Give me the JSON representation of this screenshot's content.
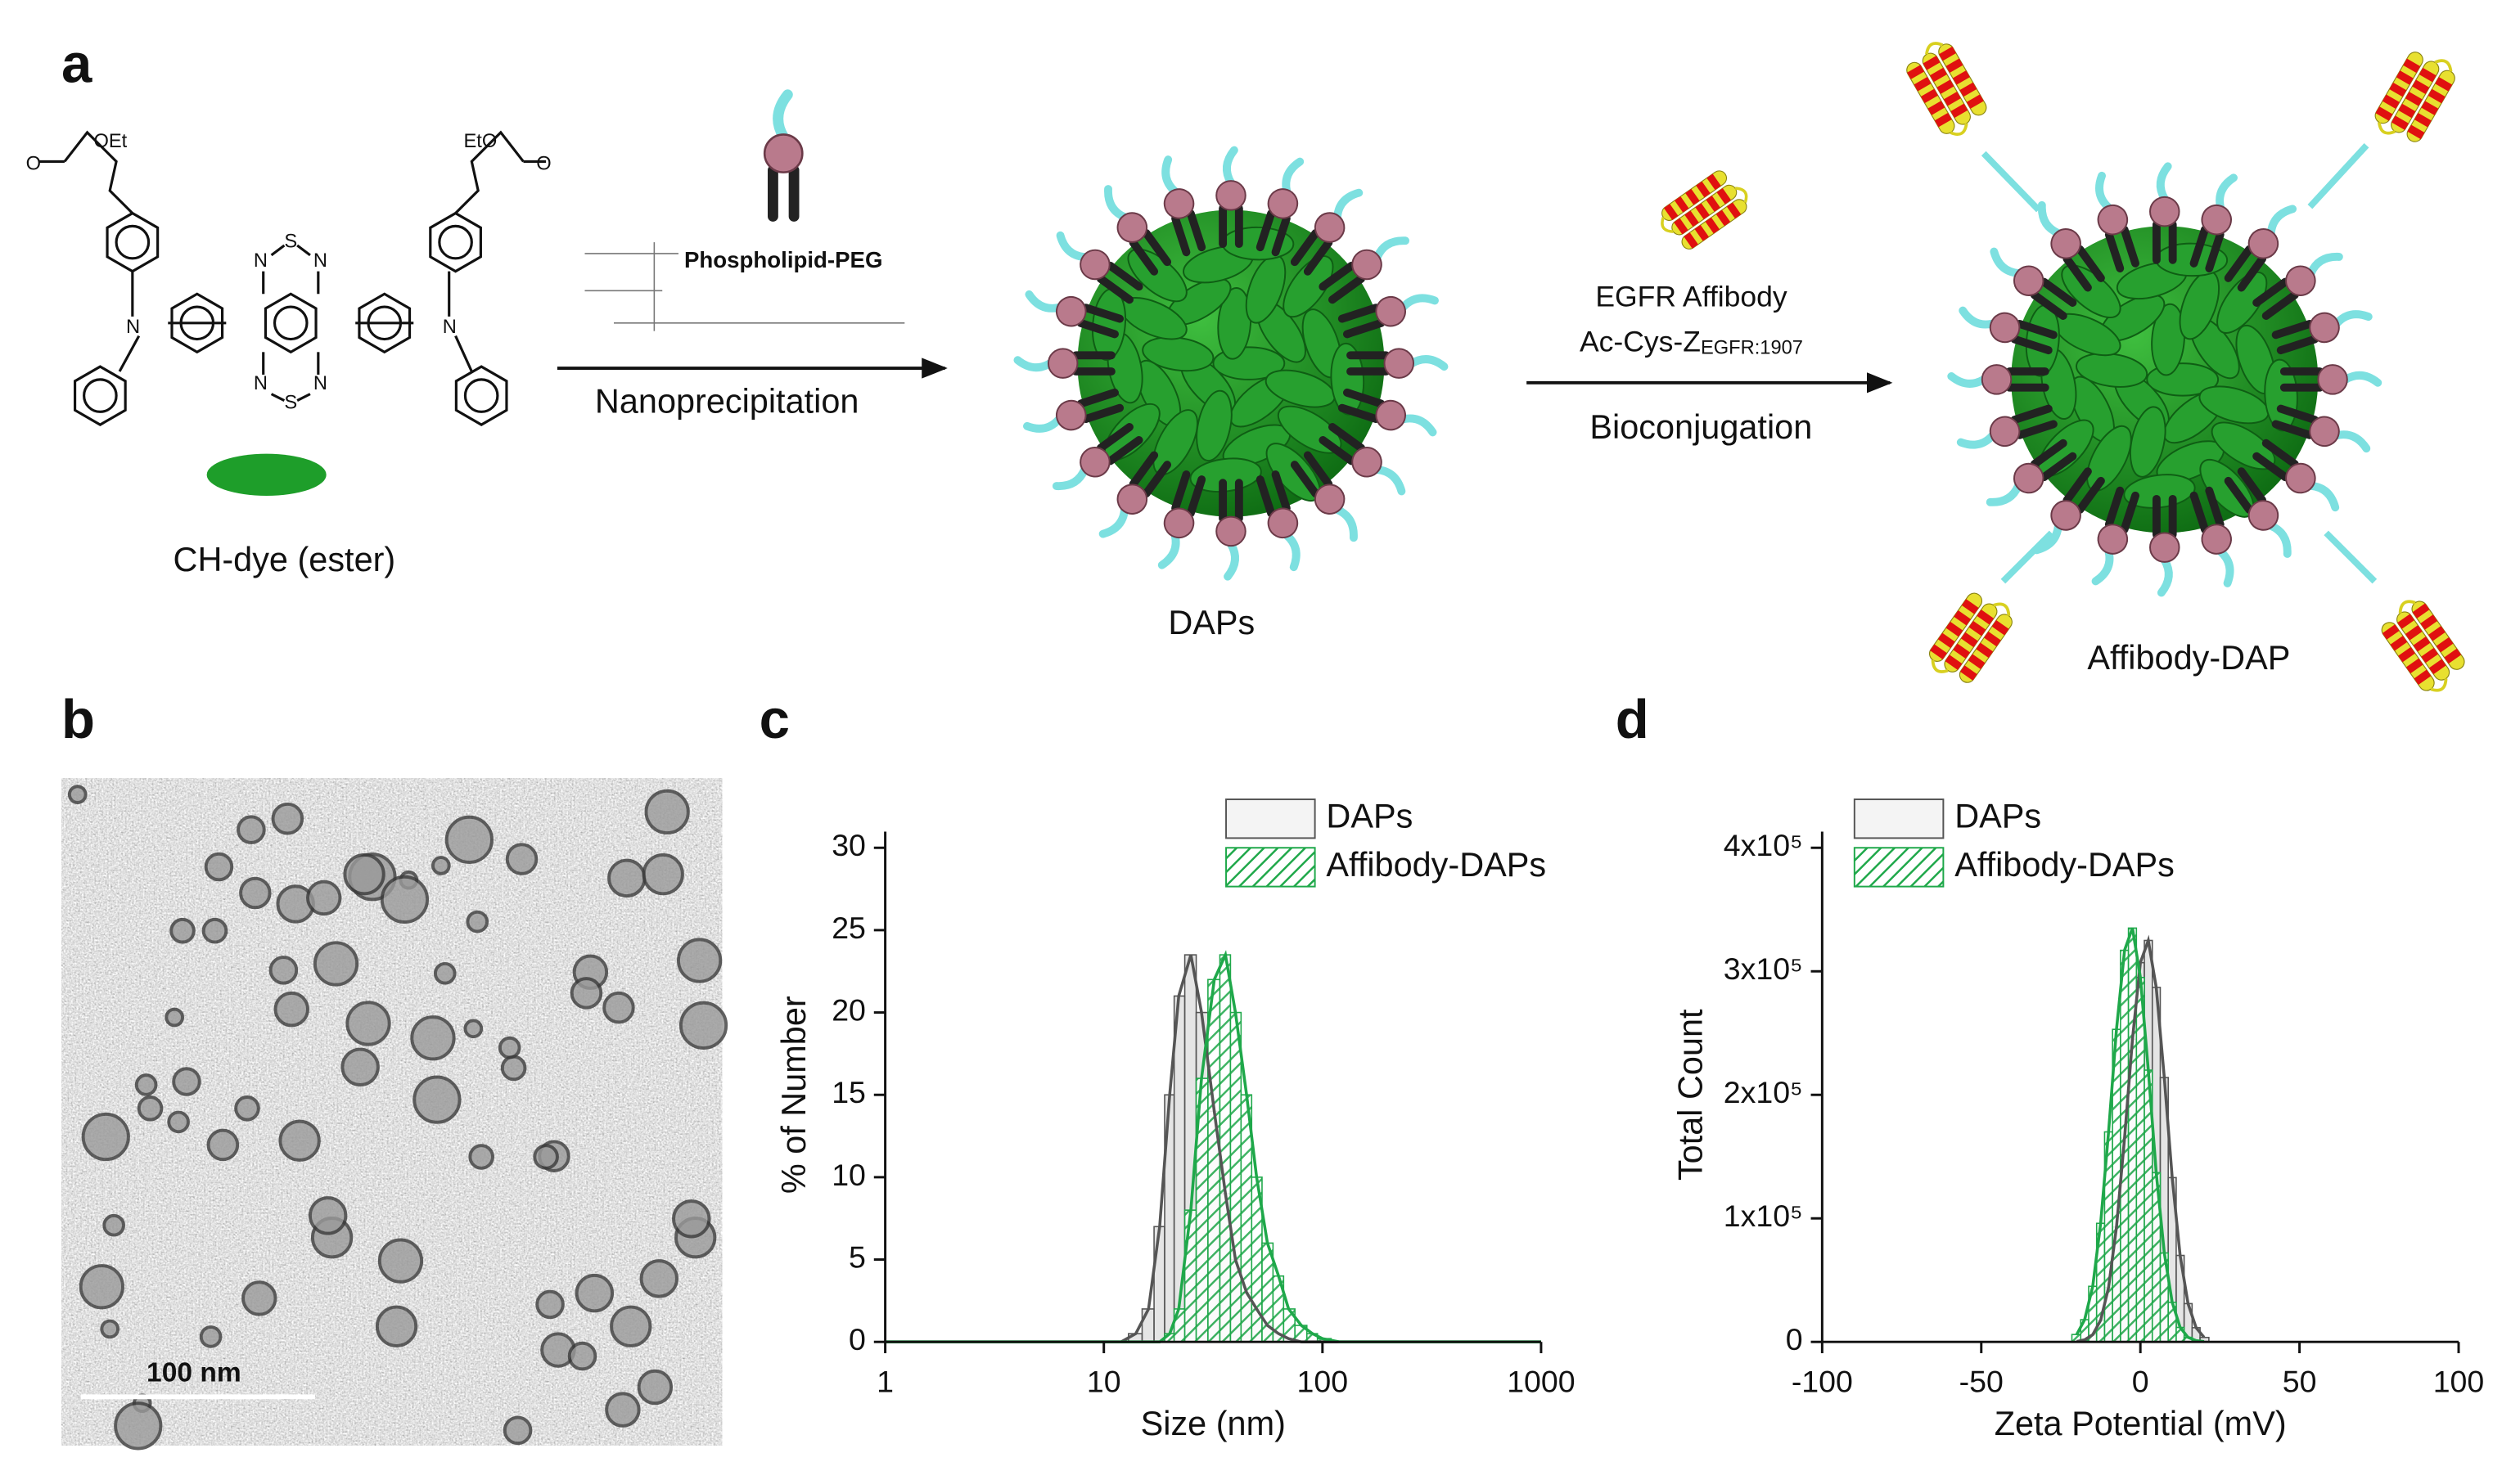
{
  "panel_labels": [
    "a",
    "b",
    "c",
    "d"
  ],
  "scheme": {
    "ester_left": "OEt",
    "ester_right": "EtO",
    "carbonyl_o": "O",
    "amine_n": "N",
    "thiadiazole_n": "N",
    "thiadiazole_s": "S",
    "dye_name": "CH-dye (ester)",
    "lipid_name": "Phospholipid-PEG",
    "step1": "Nanoprecipitation",
    "product1": "DAPs",
    "affibody_name": "EGFR Affibody",
    "affibody_code": "Ac-Cys-Z",
    "affibody_code_sub": "EGFR:1907",
    "step2": "Bioconjugation",
    "product2": "Affibody-DAP"
  },
  "tem": {
    "scale_bar": "100 nm"
  },
  "chart_data": [
    {
      "type": "bar",
      "x_label": "Size (nm)",
      "y_label": "% of Number",
      "log_x": true,
      "xlim": [
        1,
        1000
      ],
      "xticks": [
        1,
        10,
        100,
        1000
      ],
      "ylim": [
        0,
        30
      ],
      "yticks": [
        0,
        5,
        10,
        15,
        20,
        25,
        30
      ],
      "legend": "upper right",
      "x": [
        1,
        12,
        14,
        16,
        18,
        20,
        22,
        25,
        28,
        32,
        36,
        40,
        45,
        50,
        56,
        63,
        70,
        80,
        90,
        100,
        120,
        1000
      ],
      "series": [
        {
          "name": "DAPs",
          "color": "#555555",
          "hatch": false,
          "values": [
            0,
            0,
            0.5,
            2,
            7,
            15,
            21,
            23.5,
            20,
            14,
            9,
            5,
            3,
            2,
            1,
            0.5,
            0.2,
            0,
            0,
            0,
            0,
            0
          ]
        },
        {
          "name": "Affibody-DAPs",
          "color": "#1fa84a",
          "hatch": true,
          "values": [
            0,
            0,
            0,
            0,
            0,
            0.5,
            2,
            8,
            16,
            22,
            23.5,
            20,
            15,
            10,
            6,
            4,
            2,
            1,
            0.5,
            0.2,
            0,
            0
          ]
        }
      ]
    },
    {
      "type": "bar",
      "x_label": "Zeta Potential (mV)",
      "y_label": "Total Count",
      "log_x": false,
      "xlim": [
        -100,
        100
      ],
      "xticks": [
        -100,
        -50,
        0,
        50,
        100
      ],
      "ylim": [
        0,
        400000
      ],
      "yticks": [
        0,
        {
          "value": 100000,
          "label": "1x10⁵"
        },
        {
          "value": 200000,
          "label": "2x10⁵"
        },
        {
          "value": 300000,
          "label": "3x10⁵"
        },
        {
          "value": 400000,
          "label": "4x10⁵"
        }
      ],
      "legend": "upper left",
      "x": [
        -20,
        -17.5,
        -15,
        -12.5,
        -10,
        -7.5,
        -5,
        -2.5,
        0,
        2.5,
        5,
        7.5,
        10,
        12.5,
        15,
        17.5,
        20
      ],
      "series": [
        {
          "name": "DAPs",
          "color": "#555555",
          "hatch": false,
          "values": [
            400,
            1700,
            5900,
            17500,
            44000,
            93000,
            165000,
            245000,
            307000,
            325000,
            287000,
            214000,
            133000,
            70000,
            31000,
            11500,
            3600
          ]
        },
        {
          "name": "Affibody-DAPs",
          "color": "#1fa84a",
          "hatch": true,
          "values": [
            6000,
            18000,
            45000,
            96000,
            170000,
            253000,
            317000,
            335000,
            295000,
            220000,
            137000,
            72000,
            32000,
            11700,
            3700,
            1000,
            200
          ]
        }
      ]
    }
  ]
}
